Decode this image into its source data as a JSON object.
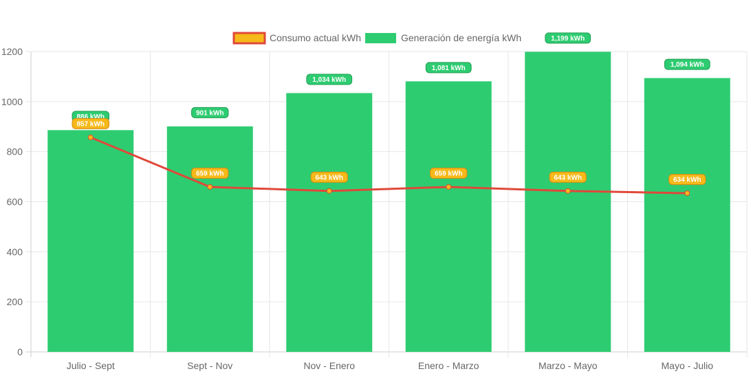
{
  "chart_data": {
    "type": "bar",
    "categories": [
      "Julio - Sept",
      "Sept - Nov",
      "Nov - Enero",
      "Enero - Marzo",
      "Marzo - Mayo",
      "Mayo - Julio"
    ],
    "ylim": [
      0,
      1200
    ],
    "yticks": [
      0,
      200,
      400,
      600,
      800,
      1000,
      1200
    ],
    "grid": true,
    "legend_position": "top-center",
    "series": [
      {
        "name": "Consumo actual kWh",
        "type": "line",
        "color": "#e0483a",
        "marker_color": "#f5b919",
        "values": [
          857,
          659,
          643,
          659,
          643,
          634
        ],
        "labels": [
          "857 kWh",
          "659 kWh",
          "643 kWh",
          "659 kWh",
          "643 kWh",
          "634 kWh"
        ]
      },
      {
        "name": "Generación de energía kWh",
        "type": "bar",
        "color": "#2ecc71",
        "values": [
          886,
          901,
          1034,
          1081,
          1199,
          1094
        ],
        "labels": [
          "886 kWh",
          "901 kWh",
          "1,034 kWh",
          "1,081 kWh",
          "1,199 kWh",
          "1,094 kWh"
        ]
      }
    ]
  }
}
